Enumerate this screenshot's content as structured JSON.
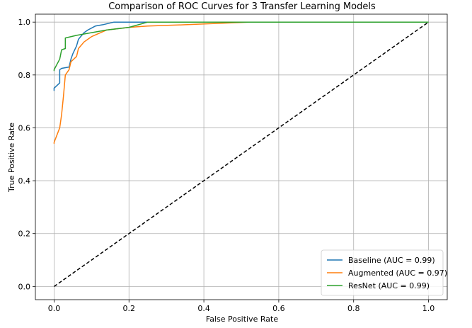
{
  "chart_data": {
    "type": "line",
    "title": "Comparison of ROC Curves for 3 Transfer Learning Models",
    "xlabel": "False Positive Rate",
    "ylabel": "True Positive Rate",
    "xlim": [
      -0.05,
      1.05
    ],
    "ylim": [
      -0.05,
      1.03
    ],
    "xticks": [
      0.0,
      0.2,
      0.4,
      0.6,
      0.8,
      1.0
    ],
    "xtick_labels": [
      "0.0",
      "0.2",
      "0.4",
      "0.6",
      "0.8",
      "1.0"
    ],
    "yticks": [
      0.0,
      0.2,
      0.4,
      0.6,
      0.8,
      1.0
    ],
    "ytick_labels": [
      "0.0",
      "0.2",
      "0.4",
      "0.6",
      "0.8",
      "1.0"
    ],
    "grid": true,
    "legend_position": "bottom-right",
    "series": [
      {
        "name": "Baseline (AUC = 0.99)",
        "color": "#1f77b4",
        "x": [
          0.0,
          0.0,
          0.015,
          0.015,
          0.02,
          0.04,
          0.045,
          0.05,
          0.06,
          0.065,
          0.08,
          0.09,
          0.11,
          0.13,
          0.16,
          0.5,
          1.0
        ],
        "y": [
          0.74,
          0.75,
          0.77,
          0.82,
          0.825,
          0.83,
          0.86,
          0.88,
          0.91,
          0.935,
          0.96,
          0.97,
          0.985,
          0.99,
          1.0,
          1.0,
          1.0
        ]
      },
      {
        "name": "Augmented (AUC = 0.97)",
        "color": "#ff7f0e",
        "x": [
          0.0,
          0.0,
          0.015,
          0.02,
          0.025,
          0.03,
          0.04,
          0.045,
          0.06,
          0.065,
          0.08,
          0.1,
          0.14,
          0.2,
          0.25,
          0.35,
          0.52,
          1.0
        ],
        "y": [
          0.54,
          0.545,
          0.6,
          0.65,
          0.72,
          0.8,
          0.82,
          0.85,
          0.87,
          0.9,
          0.925,
          0.945,
          0.97,
          0.98,
          0.985,
          0.99,
          1.0,
          1.0
        ]
      },
      {
        "name": "ResNet (AUC = 0.99)",
        "color": "#2ca02c",
        "x": [
          0.0,
          0.0,
          0.015,
          0.02,
          0.03,
          0.03,
          0.06,
          0.1,
          0.14,
          0.2,
          0.25,
          0.5,
          1.0
        ],
        "y": [
          0.815,
          0.82,
          0.86,
          0.895,
          0.9,
          0.94,
          0.95,
          0.96,
          0.97,
          0.98,
          1.0,
          1.0,
          1.0
        ]
      }
    ],
    "reference_line": {
      "style": "dashed",
      "color": "#000000",
      "x": [
        0.0,
        1.0
      ],
      "y": [
        0.0,
        1.0
      ]
    }
  }
}
